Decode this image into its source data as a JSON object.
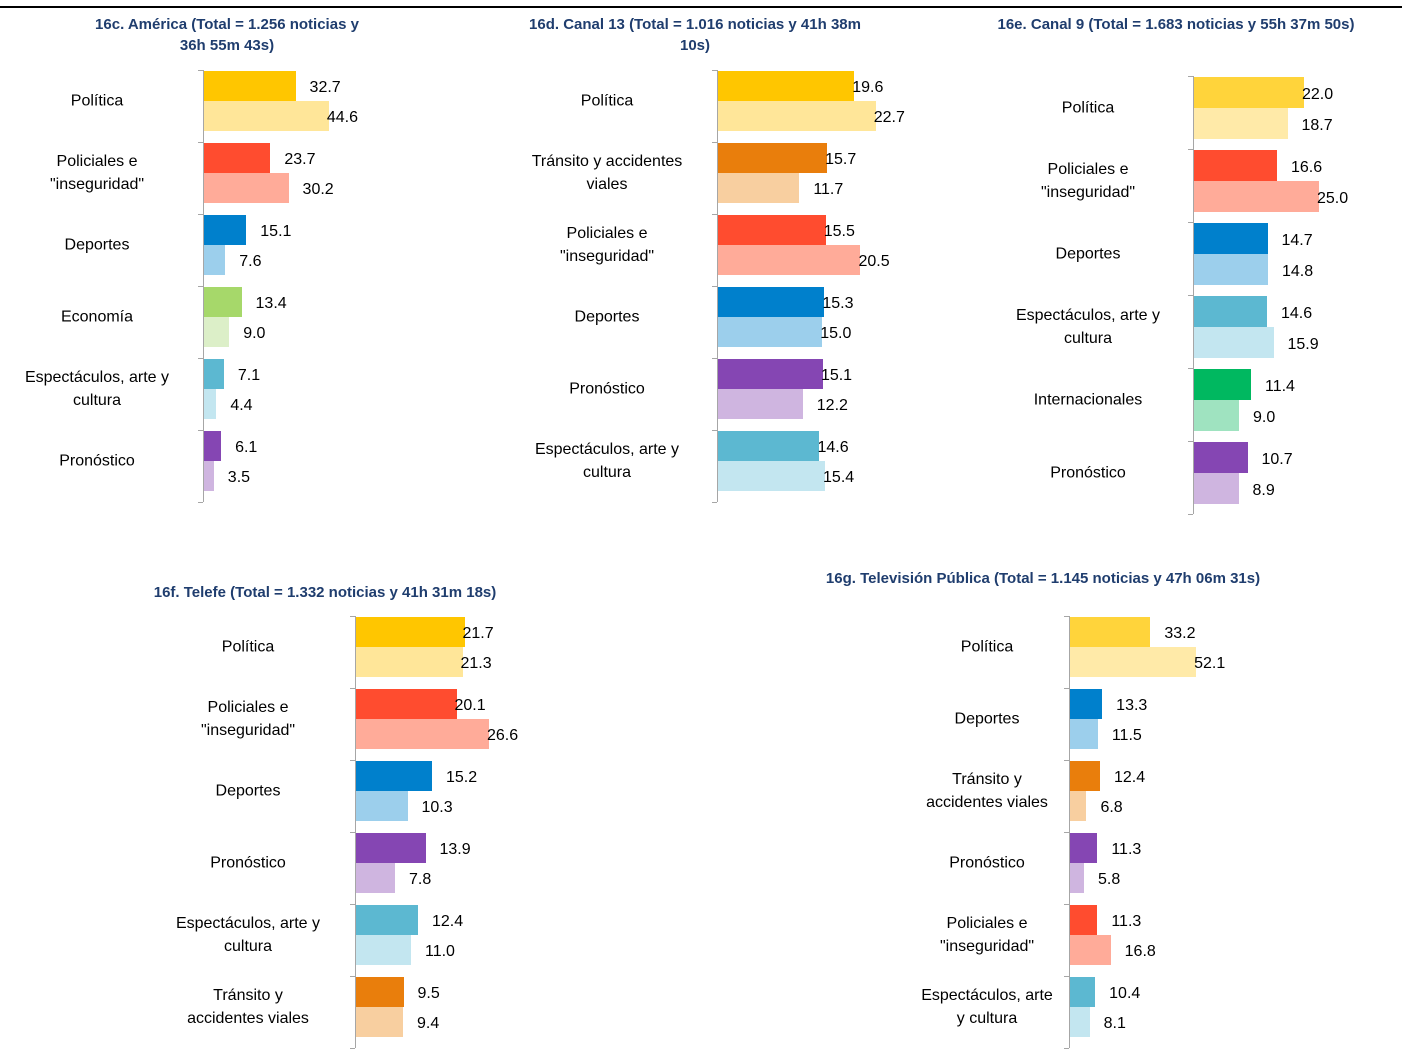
{
  "chart_data": [
    {
      "type": "bar",
      "title": "16c. América (Total = 1.256 noticias y 36h 55m 43s)",
      "title_lines": [
        "16c. América (Total = 1.256 noticias y",
        "36h 55m 43s)"
      ],
      "categories": [
        {
          "lines": [
            "Política"
          ],
          "dark": 32.7,
          "light": 44.6,
          "color": "#ffc600",
          "light_color": "#ffe699"
        },
        {
          "lines": [
            "Policiales e",
            "\"inseguridad\""
          ],
          "dark": 23.7,
          "light": 30.2,
          "color": "#ff4c2f",
          "light_color": "#ffab99"
        },
        {
          "lines": [
            "Deportes"
          ],
          "dark": 15.1,
          "light": 7.6,
          "color": "#0080cc",
          "light_color": "#9ccfec"
        },
        {
          "lines": [
            "Economía"
          ],
          "dark": 13.4,
          "light": 9.0,
          "color": "#a6d86a",
          "light_color": "#dcefc8"
        },
        {
          "lines": [
            "Espectáculos, arte y",
            "cultura"
          ],
          "dark": 7.1,
          "light": 4.4,
          "color": "#5cb8d1",
          "light_color": "#c3e6f0"
        },
        {
          "lines": [
            "Pronóstico"
          ],
          "dark": 6.1,
          "light": 3.5,
          "color": "#8546b3",
          "light_color": "#cfb5e0"
        }
      ]
    },
    {
      "type": "bar",
      "title": "16d. Canal 13 (Total = 1.016 noticias y 41h 38m 10s)",
      "title_lines": [
        "16d. Canal 13 (Total = 1.016 noticias y 41h 38m",
        "10s)"
      ],
      "categories": [
        {
          "lines": [
            "Política"
          ],
          "dark": 19.6,
          "light": 22.7,
          "color": "#ffc600",
          "light_color": "#ffe699"
        },
        {
          "lines": [
            "Tránsito y accidentes",
            "viales"
          ],
          "dark": 15.7,
          "light": 11.7,
          "color": "#e97e0c",
          "light_color": "#f8cfa0"
        },
        {
          "lines": [
            "Policiales e",
            "\"inseguridad\""
          ],
          "dark": 15.5,
          "light": 20.5,
          "color": "#ff4c2f",
          "light_color": "#ffab99"
        },
        {
          "lines": [
            "Deportes"
          ],
          "dark": 15.3,
          "light": 15.0,
          "color": "#0080cc",
          "light_color": "#9ccfec"
        },
        {
          "lines": [
            "Pronóstico"
          ],
          "dark": 15.1,
          "light": 12.2,
          "color": "#8546b3",
          "light_color": "#cfb5e0"
        },
        {
          "lines": [
            "Espectáculos, arte y",
            "cultura"
          ],
          "dark": 14.6,
          "light": 15.4,
          "color": "#5cb8d1",
          "light_color": "#c3e6f0"
        }
      ]
    },
    {
      "type": "bar",
      "title": "16e. Canal 9 (Total = 1.683 noticias y 55h 37m 50s)",
      "title_lines": [
        "16e. Canal 9 (Total = 1.683 noticias y 55h 37m 50s)"
      ],
      "categories": [
        {
          "lines": [
            "Política"
          ],
          "dark": 22.0,
          "light": 18.7,
          "color": "#ffd43b",
          "light_color": "#ffeaa8"
        },
        {
          "lines": [
            "Policiales e",
            "\"inseguridad\""
          ],
          "dark": 16.6,
          "light": 25.0,
          "color": "#ff4c2f",
          "light_color": "#ffab99"
        },
        {
          "lines": [
            "Deportes"
          ],
          "dark": 14.7,
          "light": 14.8,
          "color": "#0080cc",
          "light_color": "#9ccfec"
        },
        {
          "lines": [
            "Espectáculos, arte y",
            "cultura"
          ],
          "dark": 14.6,
          "light": 15.9,
          "color": "#5cb8d1",
          "light_color": "#c3e6f0"
        },
        {
          "lines": [
            "Internacionales"
          ],
          "dark": 11.4,
          "light": 9.0,
          "color": "#00b860",
          "light_color": "#9fe3c0"
        },
        {
          "lines": [
            "Pronóstico"
          ],
          "dark": 10.7,
          "light": 8.9,
          "color": "#8546b3",
          "light_color": "#cfb5e0"
        }
      ]
    },
    {
      "type": "bar",
      "title": "16f. Telefe (Total = 1.332 noticias y 41h 31m 18s)",
      "title_lines": [
        "16f. Telefe (Total = 1.332 noticias y 41h 31m 18s)"
      ],
      "categories": [
        {
          "lines": [
            "Política"
          ],
          "dark": 21.7,
          "light": 21.3,
          "color": "#ffc600",
          "light_color": "#ffe699"
        },
        {
          "lines": [
            "Policiales e",
            "\"inseguridad\""
          ],
          "dark": 20.1,
          "light": 26.6,
          "color": "#ff4c2f",
          "light_color": "#ffab99"
        },
        {
          "lines": [
            "Deportes"
          ],
          "dark": 15.2,
          "light": 10.3,
          "color": "#0080cc",
          "light_color": "#9ccfec"
        },
        {
          "lines": [
            "Pronóstico"
          ],
          "dark": 13.9,
          "light": 7.8,
          "color": "#8546b3",
          "light_color": "#cfb5e0"
        },
        {
          "lines": [
            "Espectáculos, arte y",
            "cultura"
          ],
          "dark": 12.4,
          "light": 11.0,
          "color": "#5cb8d1",
          "light_color": "#c3e6f0"
        },
        {
          "lines": [
            "Tránsito y",
            "accidentes viales"
          ],
          "dark": 9.5,
          "light": 9.4,
          "color": "#e97e0c",
          "light_color": "#f8cfa0"
        }
      ]
    },
    {
      "type": "bar",
      "title": "16g. Televisión Pública (Total = 1.145 noticias y 47h 06m 31s)",
      "title_lines": [
        "16g. Televisión Pública (Total = 1.145 noticias y 47h 06m 31s)"
      ],
      "categories": [
        {
          "lines": [
            "Política"
          ],
          "dark": 33.2,
          "light": 52.1,
          "color": "#ffd43b",
          "light_color": "#ffeaa8"
        },
        {
          "lines": [
            "Deportes"
          ],
          "dark": 13.3,
          "light": 11.5,
          "color": "#0080cc",
          "light_color": "#9ccfec"
        },
        {
          "lines": [
            "Tránsito y",
            "accidentes viales"
          ],
          "dark": 12.4,
          "light": 6.8,
          "color": "#e97e0c",
          "light_color": "#f8cfa0"
        },
        {
          "lines": [
            "Pronóstico"
          ],
          "dark": 11.3,
          "light": 5.8,
          "color": "#8546b3",
          "light_color": "#cfb5e0"
        },
        {
          "lines": [
            "Policiales e",
            "\"inseguridad\""
          ],
          "dark": 11.3,
          "light": 16.8,
          "color": "#ff4c2f",
          "light_color": "#ffab99"
        },
        {
          "lines": [
            "Espectáculos, arte",
            "y cultura"
          ],
          "dark": 10.4,
          "light": 8.1,
          "color": "#5cb8d1",
          "light_color": "#c3e6f0"
        }
      ]
    }
  ]
}
